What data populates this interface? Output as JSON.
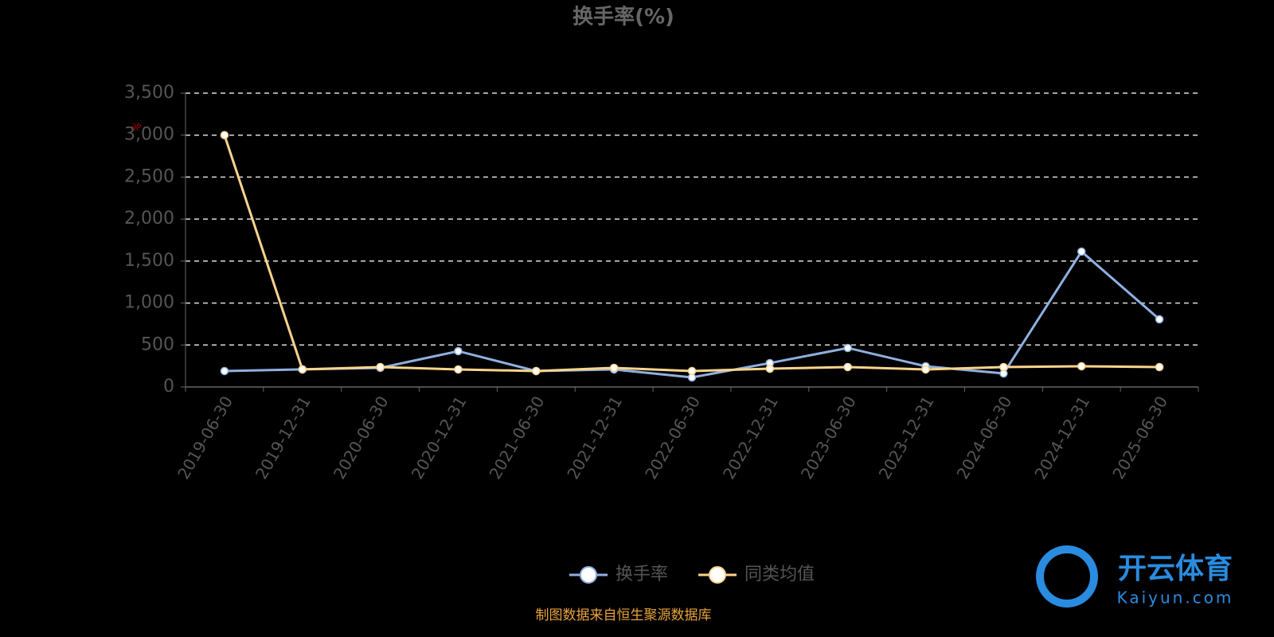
{
  "chart_data": {
    "type": "line",
    "title": "换手率(%)",
    "unit": "%",
    "categories": [
      "2019-06-30",
      "2019-12-31",
      "2020-06-30",
      "2020-12-31",
      "2021-06-30",
      "2021-12-31",
      "2022-06-30",
      "2022-12-31",
      "2023-06-30",
      "2023-12-31",
      "2024-06-30",
      "2024-12-31",
      "2025-06-30"
    ],
    "series": [
      {
        "name": "换手率",
        "color": "#8fb0e0",
        "values": [
          190,
          210,
          228,
          427,
          190,
          209,
          114,
          285,
          465,
          247,
          161,
          1613,
          806
        ]
      },
      {
        "name": "同类均值",
        "color": "#fcd48c",
        "values": [
          3000,
          209,
          237,
          209,
          190,
          228,
          190,
          218,
          237,
          209,
          237,
          247,
          237
        ]
      }
    ],
    "ylim": [
      0,
      3500
    ],
    "yticks": [
      0,
      500,
      {
        "value": 1000,
        "label": "1,000"
      },
      {
        "value": 1500,
        "label": "1,500"
      },
      {
        "value": 2000,
        "label": "2,000"
      },
      {
        "value": 2500,
        "label": "2,500"
      },
      {
        "value": 3000,
        "label": "3,000"
      },
      {
        "value": 3500,
        "label": "3,500"
      }
    ],
    "grid": true,
    "legend": "bottom",
    "source": "制图数据来自恒生聚源数据库",
    "watermark": {
      "brand": "开云体育",
      "site": "Kaiyun.com"
    }
  }
}
